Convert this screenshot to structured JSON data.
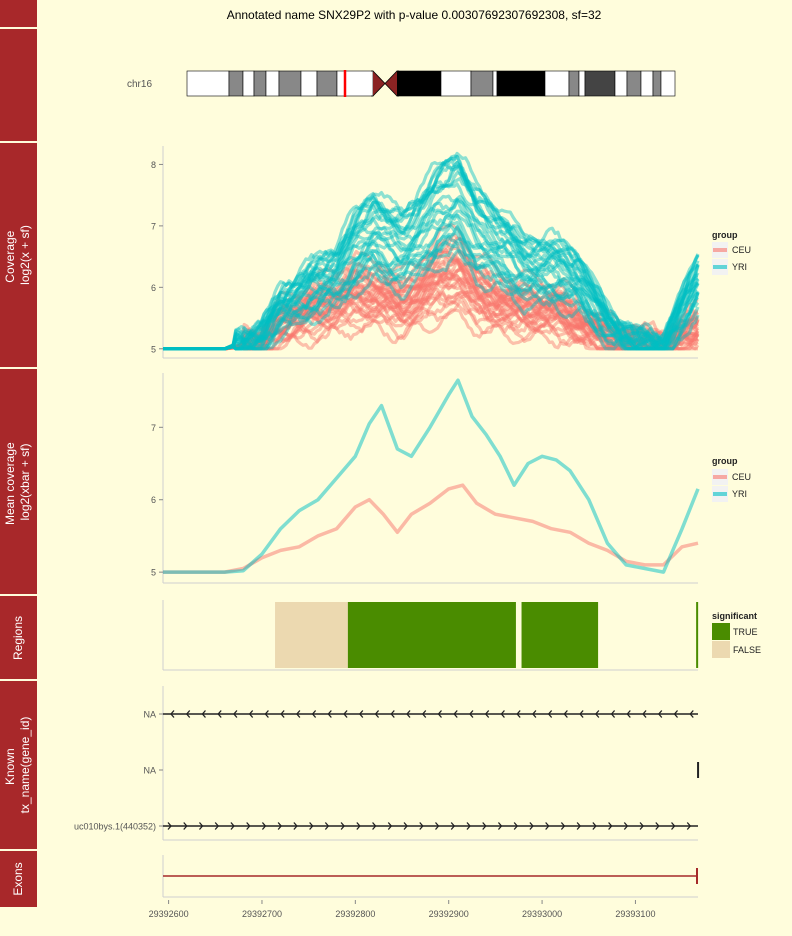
{
  "title": "Annotated name SNX29P2 with p-value 0.00307692307692308, sf=32",
  "colors": {
    "background": "#fffddc",
    "strip": "#a8282a",
    "strip_text": "#ffffff",
    "ceu": "#f8766d",
    "yri": "#00bfc4",
    "true": "#4a8c00",
    "false": "#ecd9b0",
    "exon": "#a52a2a",
    "axis": "#cfcfcf",
    "tick_text": "#555555"
  },
  "ideogram": {
    "label": "chr16",
    "bands": [
      [
        "white",
        0,
        42
      ],
      [
        "gray",
        42,
        56
      ],
      [
        "white",
        56,
        67
      ],
      [
        "gray",
        67,
        79
      ],
      [
        "white",
        79,
        92
      ],
      [
        "gray",
        92,
        114
      ],
      [
        "white",
        114,
        130
      ],
      [
        "gray",
        130,
        150
      ],
      [
        "white",
        150,
        186
      ],
      [
        "black",
        210,
        254
      ],
      [
        "white",
        254,
        284
      ],
      [
        "gray",
        284,
        306
      ],
      [
        "white",
        306,
        310
      ],
      [
        "black",
        310,
        358
      ],
      [
        "white",
        358,
        382
      ],
      [
        "gray",
        382,
        392
      ],
      [
        "white",
        392,
        398
      ],
      [
        "darkgray",
        398,
        428
      ],
      [
        "white",
        428,
        440
      ],
      [
        "gray",
        440,
        454
      ],
      [
        "white",
        454,
        466
      ],
      [
        "gray",
        466,
        474
      ],
      [
        "white",
        474,
        488
      ]
    ],
    "centromere": [
      186,
      210
    ],
    "highlight": 158
  },
  "x_axis": {
    "ticks": [
      29392600,
      29392700,
      29392800,
      29392900,
      29393000,
      29393100
    ],
    "tick_labels": [
      "29392600",
      "29392700",
      "29392800",
      "29392900",
      "29393000",
      "29393100"
    ],
    "xlim": [
      29392594,
      29393167
    ]
  },
  "panels": [
    {
      "id": "ideogram",
      "strip": ""
    },
    {
      "id": "coverage",
      "strip": "Coverage\nlog2(x + sf)"
    },
    {
      "id": "mean",
      "strip": "Mean coverage\nlog2(xbar + sf)"
    },
    {
      "id": "regions",
      "strip": "Regions"
    },
    {
      "id": "known",
      "strip": "Known\ntx_name(gene_id)"
    },
    {
      "id": "exons",
      "strip": "Exons"
    }
  ],
  "legend_group": {
    "title": "group",
    "items": [
      "CEU",
      "YRI"
    ]
  },
  "legend_significant": {
    "title": "significant",
    "items": [
      "TRUE",
      "FALSE"
    ]
  },
  "chart_data": [
    {
      "type": "line",
      "panel": "coverage",
      "ylabel": "Coverage log2(x + sf)",
      "yticks": [
        5,
        6,
        7,
        8
      ],
      "ylim": [
        4.85,
        8.3
      ],
      "series": [
        {
          "name": "CEU",
          "key": [
            [
              29392594,
              5
            ],
            [
              29392660,
              5
            ],
            [
              29392700,
              5.1
            ],
            [
              29392720,
              5.4
            ],
            [
              29392750,
              5.6
            ],
            [
              29392780,
              5.75
            ],
            [
              29392800,
              5.9
            ],
            [
              29392830,
              5.85
            ],
            [
              29392850,
              5.7
            ],
            [
              29392870,
              5.9
            ],
            [
              29392890,
              6.15
            ],
            [
              29392910,
              6.25
            ],
            [
              29392930,
              5.9
            ],
            [
              29392960,
              5.7
            ],
            [
              29392990,
              5.65
            ],
            [
              29393020,
              5.6
            ],
            [
              29393040,
              5.4
            ],
            [
              29393070,
              5.2
            ],
            [
              29393100,
              5.1
            ],
            [
              29393130,
              5.05
            ],
            [
              29393167,
              5.35
            ]
          ]
        },
        {
          "name": "YRI",
          "key": [
            [
              29392594,
              5
            ],
            [
              29392660,
              5
            ],
            [
              29392700,
              5.2
            ],
            [
              29392720,
              5.65
            ],
            [
              29392750,
              5.95
            ],
            [
              29392780,
              6.2
            ],
            [
              29392800,
              6.6
            ],
            [
              29392820,
              6.9
            ],
            [
              29392835,
              6.7
            ],
            [
              29392850,
              6.6
            ],
            [
              29392870,
              6.9
            ],
            [
              29392890,
              7.2
            ],
            [
              29392910,
              7.4
            ],
            [
              29392930,
              6.9
            ],
            [
              29392960,
              6.6
            ],
            [
              29392980,
              6.3
            ],
            [
              29393010,
              6.3
            ],
            [
              29393040,
              6.1
            ],
            [
              29393070,
              5.4
            ],
            [
              29393100,
              5.1
            ],
            [
              29393130,
              5.05
            ],
            [
              29393167,
              6.1
            ]
          ]
        }
      ]
    },
    {
      "type": "line",
      "panel": "mean",
      "ylabel": "Mean coverage log2(xbar + sf)",
      "yticks": [
        5,
        6,
        7
      ],
      "ylim": [
        4.85,
        7.75
      ],
      "series": [
        {
          "name": "CEU",
          "x": [
            29392594,
            29392660,
            29392680,
            29392700,
            29392720,
            29392740,
            29392760,
            29392780,
            29392800,
            29392815,
            29392830,
            29392845,
            29392860,
            29392880,
            29392900,
            29392915,
            29392930,
            29392950,
            29392970,
            29392990,
            29393010,
            29393030,
            29393050,
            29393070,
            29393090,
            29393110,
            29393130,
            29393150,
            29393167
          ],
          "y": [
            5,
            5,
            5.05,
            5.2,
            5.3,
            5.35,
            5.5,
            5.6,
            5.9,
            6.0,
            5.8,
            5.55,
            5.8,
            5.95,
            6.15,
            6.2,
            5.95,
            5.8,
            5.75,
            5.7,
            5.6,
            5.55,
            5.4,
            5.3,
            5.15,
            5.1,
            5.1,
            5.35,
            5.4
          ]
        },
        {
          "name": "YRI",
          "x": [
            29392594,
            29392660,
            29392680,
            29392700,
            29392720,
            29392740,
            29392760,
            29392780,
            29392800,
            29392815,
            29392828,
            29392845,
            29392860,
            29392880,
            29392900,
            29392910,
            29392925,
            29392940,
            29392955,
            29392970,
            29392985,
            29393000,
            29393015,
            29393030,
            29393050,
            29393070,
            29393090,
            29393110,
            29393130,
            29393150,
            29393167
          ],
          "y": [
            5,
            5,
            5.02,
            5.25,
            5.6,
            5.85,
            6.0,
            6.3,
            6.6,
            7.05,
            7.3,
            6.7,
            6.6,
            7.0,
            7.45,
            7.65,
            7.15,
            6.9,
            6.6,
            6.2,
            6.5,
            6.6,
            6.55,
            6.4,
            6.0,
            5.4,
            5.1,
            5.05,
            5.0,
            5.6,
            6.15
          ]
        }
      ]
    },
    {
      "type": "bar",
      "panel": "regions",
      "regions": [
        {
          "start": 29392714,
          "end": 29392792,
          "significant": "FALSE"
        },
        {
          "start": 29392792,
          "end": 29392972,
          "significant": "TRUE"
        },
        {
          "start": 29392978,
          "end": 29393060,
          "significant": "TRUE"
        },
        {
          "start": 29393165,
          "end": 29393167,
          "significant": "TRUE"
        }
      ]
    },
    {
      "type": "line",
      "panel": "known",
      "tracks": [
        {
          "label": "NA",
          "strand": "-",
          "start": 29392594,
          "end": 29393167
        },
        {
          "label": "NA",
          "strand": "",
          "start": 29393166,
          "end": 29393167
        },
        {
          "label": "uc010bys.1(440352)",
          "strand": "+",
          "start": 29392594,
          "end": 29393167
        }
      ]
    },
    {
      "type": "line",
      "panel": "exons",
      "exon_line": {
        "start": 29392594,
        "end": 29393167
      }
    }
  ]
}
